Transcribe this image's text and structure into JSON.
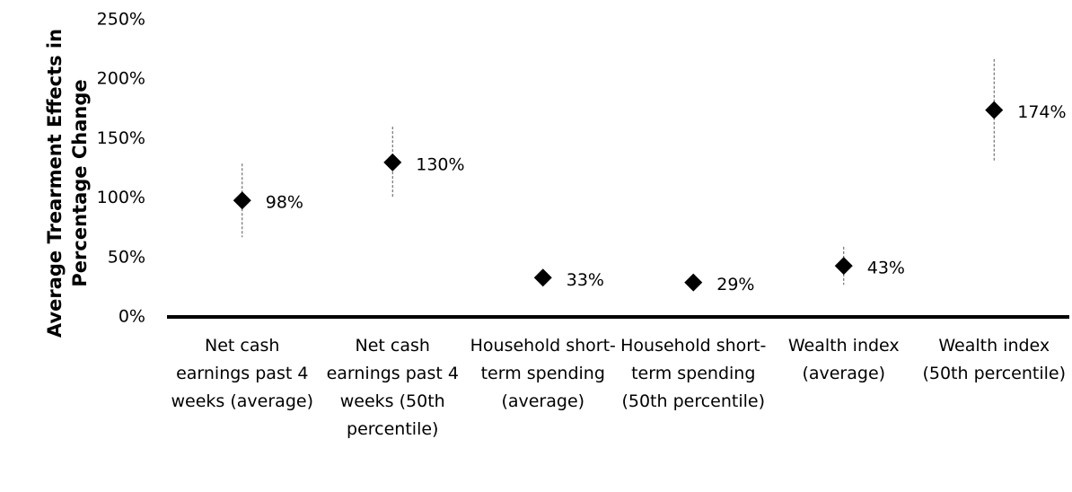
{
  "chart_data": {
    "type": "errorbar",
    "y_label": "Average Trearment Effects in Percentage Change",
    "categories": [
      "Net cash earnings past 4 weeks (average)",
      "Net cash earnings past 4 weeks (50th percentile)",
      "Household short-term spending (average)",
      "Household short-term spending (50th percentile)",
      "Wealth index (average)",
      "Wealth index (50th percentile)"
    ],
    "values": [
      98,
      130,
      33,
      29,
      43,
      174
    ],
    "value_labels": [
      "98%",
      "130%",
      "33%",
      "29%",
      "43%",
      "174%"
    ],
    "errors": [
      31,
      30,
      null,
      null,
      16,
      43
    ],
    "color": "#000000",
    "ylim": [
      0,
      250
    ],
    "yticks": [
      {
        "value": 0,
        "label": "0%"
      },
      {
        "value": 50,
        "label": "50%"
      },
      {
        "value": 100,
        "label": "100%"
      },
      {
        "value": 150,
        "label": "150%"
      },
      {
        "value": 200,
        "label": "200%"
      },
      {
        "value": 250,
        "label": "250%"
      }
    ]
  }
}
